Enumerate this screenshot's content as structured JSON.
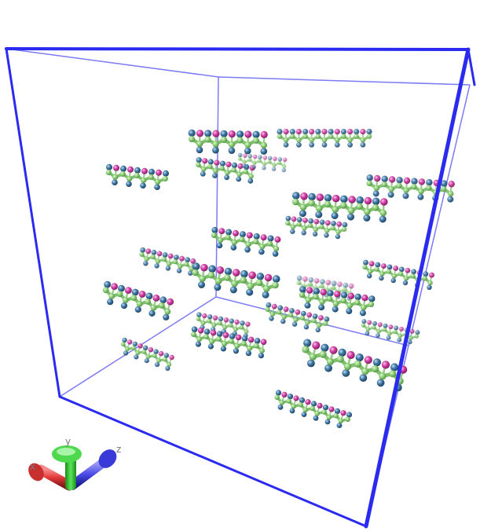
{
  "scene": {
    "box_color": "#2a2af0",
    "colors": {
      "carbon": "#8fd07a",
      "carbon_dark": "#5f9f55",
      "oxygen": "#d63fa8",
      "nitrogen": "#3f7aa8",
      "hydrogen": "#b8d8c8"
    }
  },
  "axes": {
    "x_label": "x",
    "y_label": "y",
    "z_label": "z",
    "x_color": "#e23a3a",
    "y_color": "#3ad63a",
    "z_color": "#4a4ae8"
  }
}
